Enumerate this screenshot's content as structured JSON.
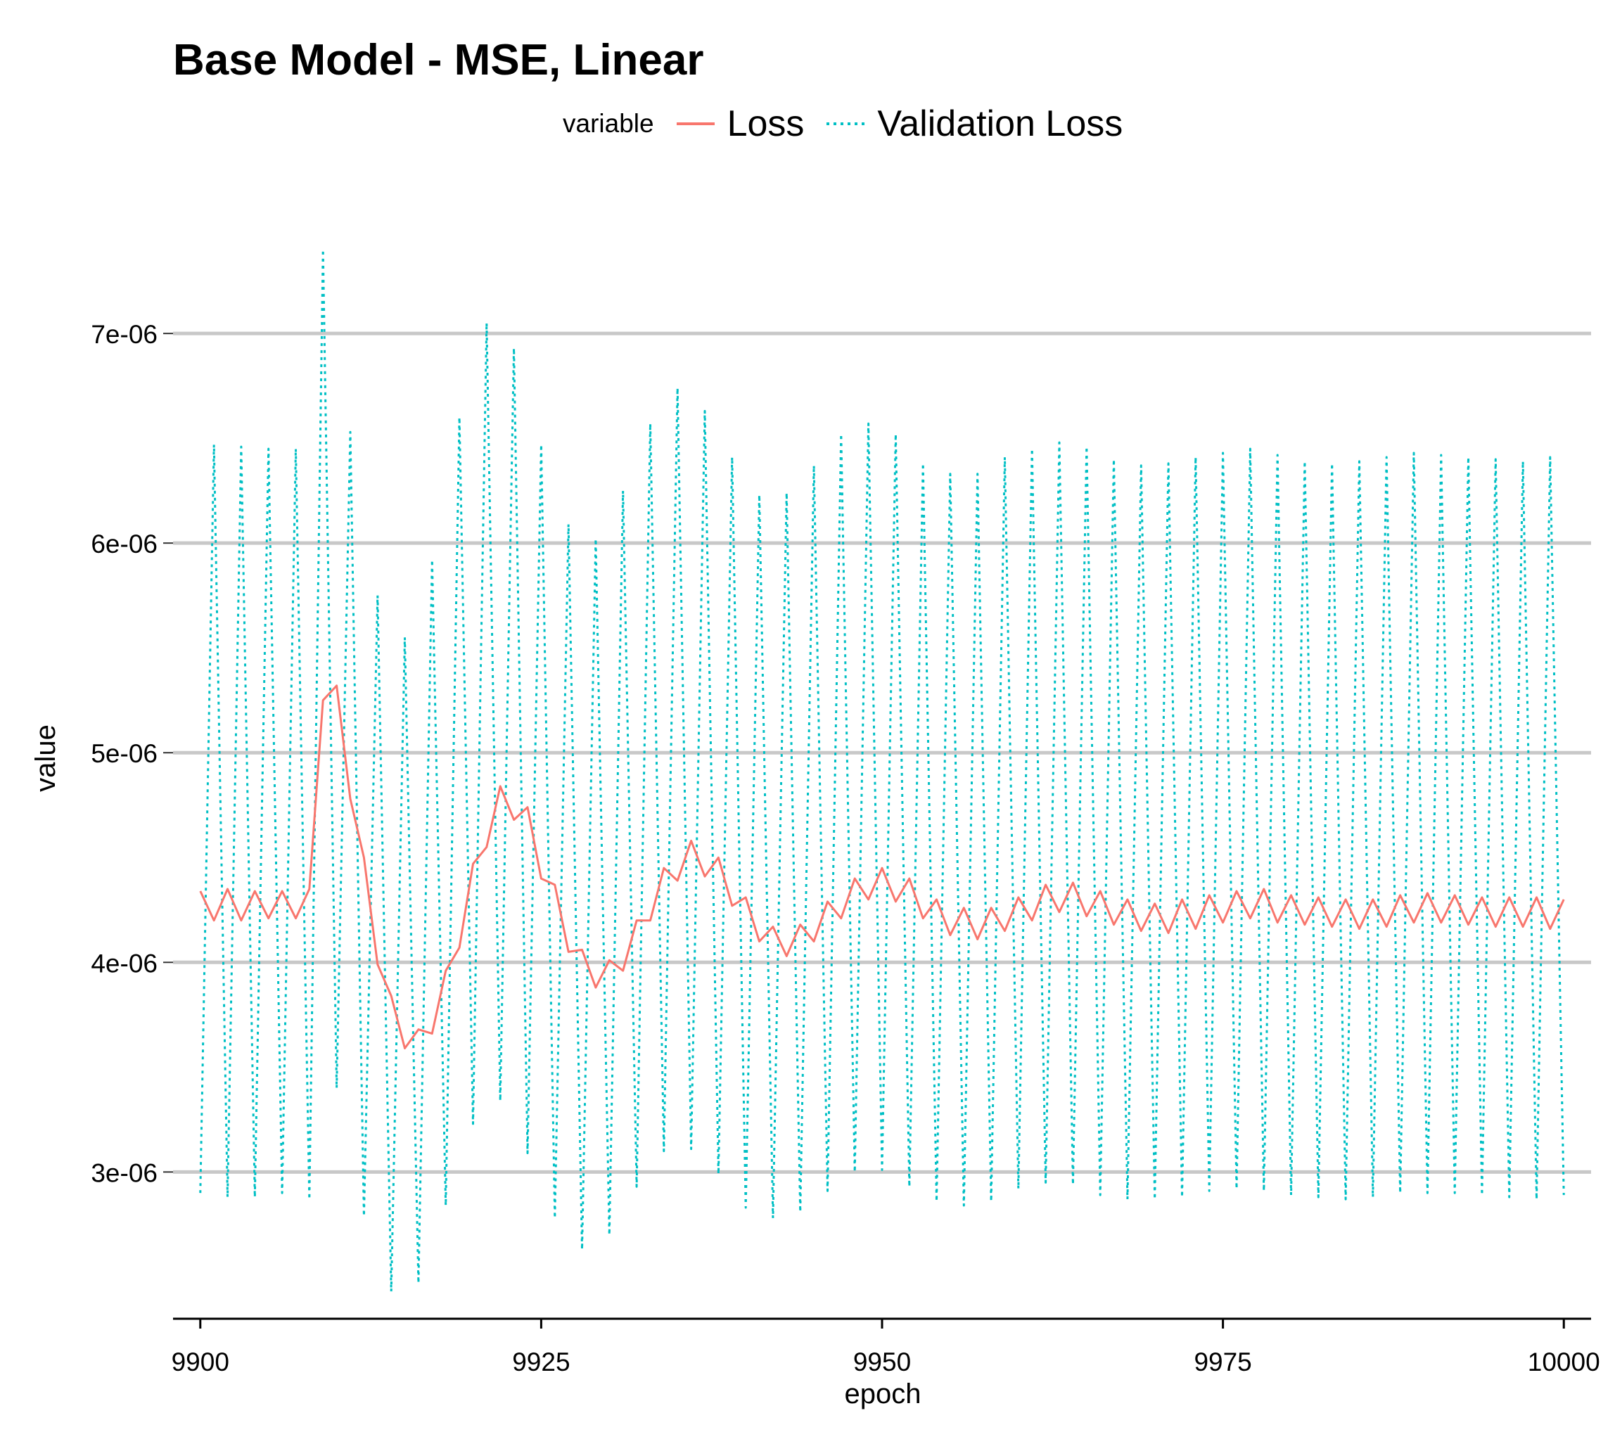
{
  "chart_data": {
    "type": "line",
    "title": "Base Model - MSE, Linear",
    "xlabel": "epoch",
    "ylabel": "value",
    "legend_title": "variable",
    "legend_position": "top",
    "grid": "horizontal-major",
    "xlim": [
      9898,
      10002
    ],
    "ylim": [
      2.3e-06,
      7.45e-06
    ],
    "x_ticks": [
      9900,
      9925,
      9950,
      9975,
      10000
    ],
    "x_tick_labels": [
      "9900",
      "9925",
      "9950",
      "9975",
      "10000"
    ],
    "y_ticks": [
      3e-06,
      4e-06,
      5e-06,
      6e-06,
      7e-06
    ],
    "y_tick_labels": [
      "3e-06",
      "4e-06",
      "5e-06",
      "6e-06",
      "7e-06"
    ],
    "series": [
      {
        "name": "Loss",
        "color": "#F8766D",
        "line_style": "solid",
        "x": [
          9900,
          9901,
          9902,
          9903,
          9904,
          9905,
          9906,
          9907,
          9908,
          9909,
          9910,
          9911,
          9912,
          9913,
          9914,
          9915,
          9916,
          9917,
          9918,
          9919,
          9920,
          9921,
          9922,
          9923,
          9924,
          9925,
          9926,
          9927,
          9928,
          9929,
          9930,
          9931,
          9932,
          9933,
          9934,
          9935,
          9936,
          9937,
          9938,
          9939,
          9940,
          9941,
          9942,
          9943,
          9944,
          9945,
          9946,
          9947,
          9948,
          9949,
          9950,
          9951,
          9952,
          9953,
          9954,
          9955,
          9956,
          9957,
          9958,
          9959,
          9960,
          9961,
          9962,
          9963,
          9964,
          9965,
          9966,
          9967,
          9968,
          9969,
          9970,
          9971,
          9972,
          9973,
          9974,
          9975,
          9976,
          9977,
          9978,
          9979,
          9980,
          9981,
          9982,
          9983,
          9984,
          9985,
          9986,
          9987,
          9988,
          9989,
          9990,
          9991,
          9992,
          9993,
          9994,
          9995,
          9996,
          9997,
          9998,
          9999,
          10000
        ],
        "values": [
          4.34e-06,
          4.2e-06,
          4.35e-06,
          4.2e-06,
          4.34e-06,
          4.21e-06,
          4.34e-06,
          4.21e-06,
          4.35e-06,
          5.25e-06,
          5.32e-06,
          4.78e-06,
          4.5e-06,
          3.99e-06,
          3.84e-06,
          3.59e-06,
          3.68e-06,
          3.66e-06,
          3.96e-06,
          4.07e-06,
          4.47e-06,
          4.55e-06,
          4.84e-06,
          4.68e-06,
          4.74e-06,
          4.4e-06,
          4.37e-06,
          4.05e-06,
          4.06e-06,
          3.88e-06,
          4.01e-06,
          3.96e-06,
          4.2e-06,
          4.2e-06,
          4.45e-06,
          4.39e-06,
          4.58e-06,
          4.41e-06,
          4.5e-06,
          4.27e-06,
          4.31e-06,
          4.1e-06,
          4.17e-06,
          4.03e-06,
          4.18e-06,
          4.1e-06,
          4.29e-06,
          4.21e-06,
          4.4e-06,
          4.3e-06,
          4.45e-06,
          4.29e-06,
          4.4e-06,
          4.21e-06,
          4.3e-06,
          4.13e-06,
          4.26e-06,
          4.11e-06,
          4.26e-06,
          4.15e-06,
          4.31e-06,
          4.2e-06,
          4.37e-06,
          4.24e-06,
          4.38e-06,
          4.22e-06,
          4.34e-06,
          4.18e-06,
          4.3e-06,
          4.15e-06,
          4.28e-06,
          4.14e-06,
          4.3e-06,
          4.16e-06,
          4.32e-06,
          4.19e-06,
          4.34e-06,
          4.21e-06,
          4.35e-06,
          4.19e-06,
          4.32e-06,
          4.18e-06,
          4.31e-06,
          4.17e-06,
          4.3e-06,
          4.16e-06,
          4.3e-06,
          4.17e-06,
          4.32e-06,
          4.19e-06,
          4.33e-06,
          4.19e-06,
          4.32e-06,
          4.18e-06,
          4.31e-06,
          4.17e-06,
          4.31e-06,
          4.17e-06,
          4.31e-06,
          4.16e-06,
          4.3e-06
        ]
      },
      {
        "name": "Validation Loss",
        "color": "#00BFC4",
        "line_style": "dotted",
        "x": [
          9900,
          9901,
          9902,
          9903,
          9904,
          9905,
          9906,
          9907,
          9908,
          9909,
          9910,
          9911,
          9912,
          9913,
          9914,
          9915,
          9916,
          9917,
          9918,
          9919,
          9920,
          9921,
          9922,
          9923,
          9924,
          9925,
          9926,
          9927,
          9928,
          9929,
          9930,
          9931,
          9932,
          9933,
          9934,
          9935,
          9936,
          9937,
          9938,
          9939,
          9940,
          9941,
          9942,
          9943,
          9944,
          9945,
          9946,
          9947,
          9948,
          9949,
          9950,
          9951,
          9952,
          9953,
          9954,
          9955,
          9956,
          9957,
          9958,
          9959,
          9960,
          9961,
          9962,
          9963,
          9964,
          9965,
          9966,
          9967,
          9968,
          9969,
          9970,
          9971,
          9972,
          9973,
          9974,
          9975,
          9976,
          9977,
          9978,
          9979,
          9980,
          9981,
          9982,
          9983,
          9984,
          9985,
          9986,
          9987,
          9988,
          9989,
          9990,
          9991,
          9992,
          9993,
          9994,
          9995,
          9996,
          9997,
          9998,
          9999,
          10000
        ],
        "values": [
          2.9e-06,
          6.47e-06,
          2.88e-06,
          6.46e-06,
          2.88e-06,
          6.45e-06,
          2.9e-06,
          6.45e-06,
          2.87e-06,
          7.4e-06,
          3.4e-06,
          6.53e-06,
          2.79e-06,
          5.75e-06,
          2.43e-06,
          5.55e-06,
          2.47e-06,
          5.92e-06,
          2.84e-06,
          6.6e-06,
          3.23e-06,
          7.05e-06,
          3.34e-06,
          6.93e-06,
          3.09e-06,
          6.47e-06,
          2.78e-06,
          6.09e-06,
          2.63e-06,
          6.02e-06,
          2.7e-06,
          6.25e-06,
          2.93e-06,
          6.57e-06,
          3.1e-06,
          6.74e-06,
          3.11e-06,
          6.63e-06,
          2.99e-06,
          6.41e-06,
          2.83e-06,
          6.23e-06,
          2.78e-06,
          6.24e-06,
          2.81e-06,
          6.37e-06,
          2.91e-06,
          6.52e-06,
          3e-06,
          6.57e-06,
          3.01e-06,
          6.52e-06,
          2.93e-06,
          6.38e-06,
          2.86e-06,
          6.33e-06,
          2.84e-06,
          6.33e-06,
          2.86e-06,
          6.41e-06,
          2.92e-06,
          6.45e-06,
          2.95e-06,
          6.48e-06,
          2.94e-06,
          6.46e-06,
          2.89e-06,
          6.4e-06,
          2.87e-06,
          6.37e-06,
          2.87e-06,
          6.38e-06,
          2.88e-06,
          6.41e-06,
          2.91e-06,
          6.43e-06,
          2.92e-06,
          6.45e-06,
          2.91e-06,
          6.42e-06,
          2.89e-06,
          6.39e-06,
          2.88e-06,
          6.38e-06,
          2.87e-06,
          6.39e-06,
          2.88e-06,
          6.41e-06,
          2.9e-06,
          6.43e-06,
          2.9e-06,
          6.42e-06,
          2.9e-06,
          6.41e-06,
          2.89e-06,
          6.4e-06,
          2.88e-06,
          6.39e-06,
          2.87e-06,
          6.41e-06,
          2.89e-06
        ]
      }
    ]
  }
}
